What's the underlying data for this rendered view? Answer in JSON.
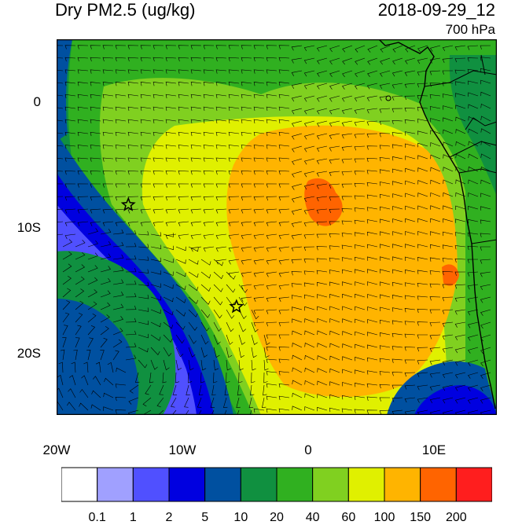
{
  "header": {
    "title": "Dry PM2.5 (ug/kg)",
    "time": "2018-09-29_12",
    "level": "700 hPa"
  },
  "axes": {
    "lat_labels": [
      "0",
      "10S",
      "20S"
    ],
    "lon_labels": [
      "20W",
      "10W",
      "0",
      "10E"
    ]
  },
  "colorbar": {
    "labels": [
      "0.1",
      "1",
      "2",
      "5",
      "10",
      "20",
      "40",
      "60",
      "100",
      "150",
      "200"
    ],
    "colors": [
      "#ffffff",
      "#a0a0ff",
      "#5050ff",
      "#0000e0",
      "#0050a0",
      "#109040",
      "#30b020",
      "#80d020",
      "#e0f000",
      "#ffb400",
      "#ff6400",
      "#ff1e1e"
    ]
  },
  "markers": [
    {
      "name": "station-1",
      "lon": -14.3,
      "lat": -8.0
    },
    {
      "name": "station-2",
      "lon": -5.7,
      "lat": -16.0
    }
  ],
  "map": {
    "lon_range": [
      -20,
      15
    ],
    "lat_range": [
      -24.5,
      5
    ]
  }
}
